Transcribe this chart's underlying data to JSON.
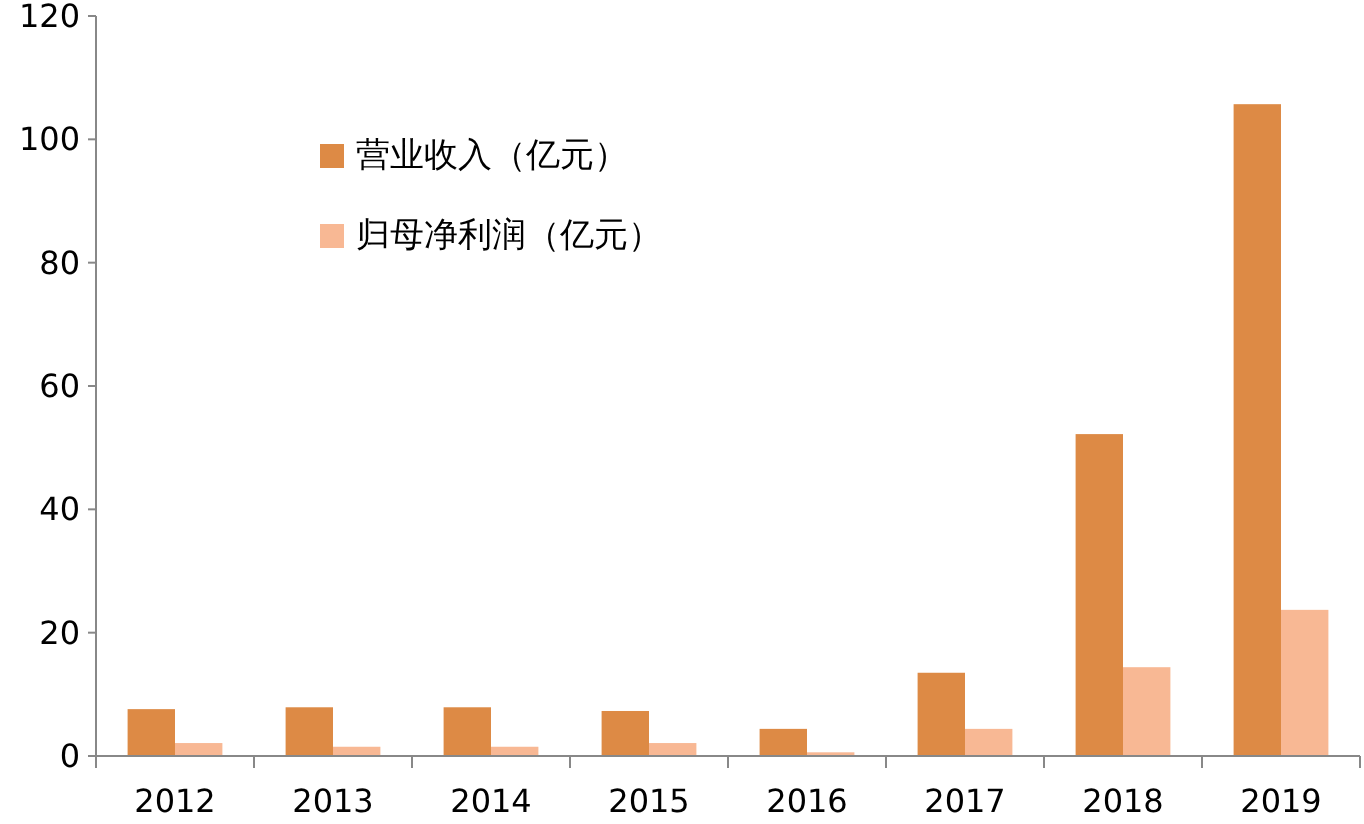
{
  "chart_data": {
    "type": "bar",
    "categories": [
      "2012",
      "2013",
      "2014",
      "2015",
      "2016",
      "2017",
      "2018",
      "2019"
    ],
    "series": [
      {
        "name": "营业收入（亿元）",
        "color": "#dd8a45",
        "values": [
          7.6,
          7.9,
          7.9,
          7.3,
          4.4,
          13.5,
          52.2,
          105.7
        ]
      },
      {
        "name": "归母净利润（亿元）",
        "color": "#f8b894",
        "values": [
          2.1,
          1.5,
          1.5,
          2.1,
          0.6,
          4.4,
          14.4,
          23.7
        ]
      }
    ],
    "ylim": [
      0,
      120
    ],
    "yticks": [
      0,
      20,
      40,
      60,
      80,
      100,
      120
    ],
    "grid": false,
    "legend": "top left"
  }
}
